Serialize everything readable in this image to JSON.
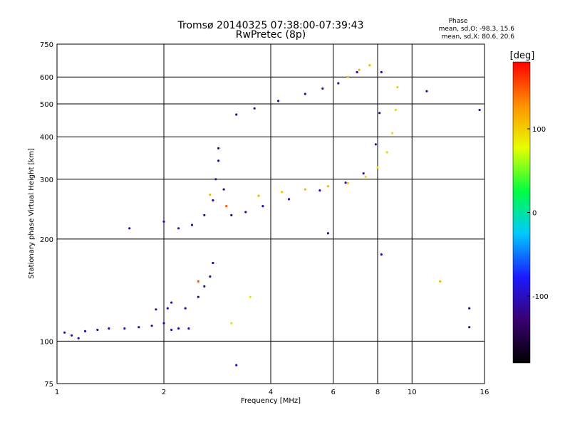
{
  "chart_data": {
    "type": "scatter",
    "title": "Tromsø 20140325 07:38:00-07:39:43",
    "subtitle": "RwPretec (8p)",
    "xlabel": "Frequency [MHz]",
    "ylabel": "Stationary phase Virtual Height [km]",
    "x_scale": "log",
    "y_scale": "log",
    "xlim": [
      1,
      16
    ],
    "ylim": [
      75,
      750
    ],
    "x_ticks": [
      1,
      2,
      4,
      6,
      8,
      10,
      16
    ],
    "y_ticks": [
      75,
      100,
      200,
      300,
      400,
      500,
      600,
      750
    ],
    "grid": true,
    "phase_info": {
      "title": "Phase",
      "line_o": "mean, sd,O: -98.3, 15.6",
      "line_x": "mean, sd,X:  80.6, 20.6"
    },
    "colorbar": {
      "unit": "[deg]",
      "ticks": [
        100,
        0,
        -100
      ],
      "range": [
        -180,
        180
      ],
      "colors": [
        "#000000",
        "#3a0070",
        "#1a1aff",
        "#00c8ff",
        "#00ff40",
        "#e8ff00",
        "#ff9000",
        "#ff0000"
      ]
    },
    "series": [
      {
        "values": [
          {
            "x": 1.05,
            "y": 106,
            "phase": -105
          },
          {
            "x": 1.1,
            "y": 104,
            "phase": -105
          },
          {
            "x": 1.15,
            "y": 102,
            "phase": -110
          },
          {
            "x": 1.2,
            "y": 107,
            "phase": -105
          },
          {
            "x": 1.3,
            "y": 108,
            "phase": -105
          },
          {
            "x": 1.4,
            "y": 109,
            "phase": -105
          },
          {
            "x": 1.55,
            "y": 109,
            "phase": -105
          },
          {
            "x": 1.7,
            "y": 110,
            "phase": -105
          },
          {
            "x": 1.85,
            "y": 111,
            "phase": -105
          },
          {
            "x": 2.0,
            "y": 113,
            "phase": -105
          },
          {
            "x": 2.1,
            "y": 108,
            "phase": -105
          },
          {
            "x": 2.2,
            "y": 109,
            "phase": -105
          },
          {
            "x": 2.35,
            "y": 109,
            "phase": -105
          },
          {
            "x": 1.9,
            "y": 124,
            "phase": -105
          },
          {
            "x": 2.05,
            "y": 125,
            "phase": -105
          },
          {
            "x": 2.1,
            "y": 130,
            "phase": -105
          },
          {
            "x": 2.3,
            "y": 125,
            "phase": -115
          },
          {
            "x": 2.5,
            "y": 135,
            "phase": -120
          },
          {
            "x": 2.6,
            "y": 145,
            "phase": -125
          },
          {
            "x": 2.7,
            "y": 155,
            "phase": -115
          },
          {
            "x": 2.75,
            "y": 170,
            "phase": -110
          },
          {
            "x": 2.0,
            "y": 225,
            "phase": -105
          },
          {
            "x": 2.2,
            "y": 215,
            "phase": -105
          },
          {
            "x": 2.4,
            "y": 220,
            "phase": -105
          },
          {
            "x": 2.6,
            "y": 235,
            "phase": -115
          },
          {
            "x": 2.75,
            "y": 260,
            "phase": -110
          },
          {
            "x": 2.8,
            "y": 300,
            "phase": -110
          },
          {
            "x": 2.85,
            "y": 340,
            "phase": -115
          },
          {
            "x": 2.85,
            "y": 370,
            "phase": -120
          },
          {
            "x": 2.95,
            "y": 280,
            "phase": -110
          },
          {
            "x": 3.1,
            "y": 235,
            "phase": -120
          },
          {
            "x": 3.4,
            "y": 240,
            "phase": -110
          },
          {
            "x": 3.8,
            "y": 250,
            "phase": -105
          },
          {
            "x": 4.5,
            "y": 262,
            "phase": -105
          },
          {
            "x": 5.5,
            "y": 278,
            "phase": -105
          },
          {
            "x": 6.5,
            "y": 293,
            "phase": -105
          },
          {
            "x": 7.3,
            "y": 312,
            "phase": -105
          },
          {
            "x": 7.9,
            "y": 380,
            "phase": -115
          },
          {
            "x": 8.1,
            "y": 470,
            "phase": -115
          },
          {
            "x": 8.2,
            "y": 620,
            "phase": -110
          },
          {
            "x": 3.2,
            "y": 465,
            "phase": -120
          },
          {
            "x": 3.6,
            "y": 485,
            "phase": -110
          },
          {
            "x": 4.2,
            "y": 510,
            "phase": -105
          },
          {
            "x": 5.0,
            "y": 535,
            "phase": -105
          },
          {
            "x": 5.6,
            "y": 555,
            "phase": -105
          },
          {
            "x": 6.2,
            "y": 575,
            "phase": -110
          },
          {
            "x": 7.0,
            "y": 620,
            "phase": -110
          },
          {
            "x": 1.6,
            "y": 215,
            "phase": -110
          },
          {
            "x": 3.2,
            "y": 85,
            "phase": -105
          },
          {
            "x": 5.8,
            "y": 208,
            "phase": -110
          },
          {
            "x": 8.2,
            "y": 180,
            "phase": -110
          },
          {
            "x": 11.0,
            "y": 545,
            "phase": -105
          },
          {
            "x": 14.5,
            "y": 125,
            "phase": -110
          },
          {
            "x": 14.5,
            "y": 110,
            "phase": -110
          },
          {
            "x": 15.5,
            "y": 480,
            "phase": -110
          }
        ]
      },
      {
        "values": [
          {
            "x": 2.7,
            "y": 270,
            "phase": 110
          },
          {
            "x": 3.7,
            "y": 268,
            "phase": 110
          },
          {
            "x": 4.3,
            "y": 275,
            "phase": 110
          },
          {
            "x": 5.0,
            "y": 280,
            "phase": 110
          },
          {
            "x": 5.8,
            "y": 286,
            "phase": 110
          },
          {
            "x": 6.6,
            "y": 292,
            "phase": 100
          },
          {
            "x": 7.4,
            "y": 305,
            "phase": 95
          },
          {
            "x": 8.0,
            "y": 325,
            "phase": 95
          },
          {
            "x": 8.5,
            "y": 360,
            "phase": 95
          },
          {
            "x": 8.8,
            "y": 410,
            "phase": 95
          },
          {
            "x": 9.0,
            "y": 480,
            "phase": 95
          },
          {
            "x": 9.1,
            "y": 560,
            "phase": 100
          },
          {
            "x": 6.6,
            "y": 600,
            "phase": 110
          },
          {
            "x": 7.1,
            "y": 630,
            "phase": 110
          },
          {
            "x": 7.6,
            "y": 650,
            "phase": 110
          },
          {
            "x": 3.1,
            "y": 113,
            "phase": 90
          },
          {
            "x": 3.5,
            "y": 135,
            "phase": 90
          },
          {
            "x": 2.5,
            "y": 150,
            "phase": 150
          },
          {
            "x": 3.0,
            "y": 250,
            "phase": 150
          },
          {
            "x": 12.0,
            "y": 150,
            "phase": 110
          }
        ]
      }
    ]
  }
}
